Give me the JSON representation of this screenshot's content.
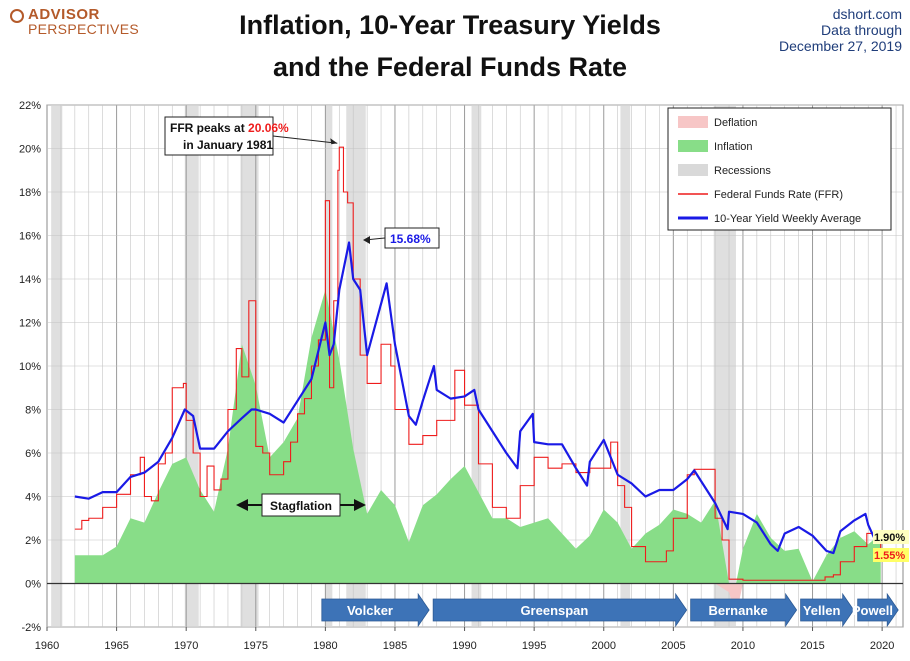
{
  "header": {
    "logo_line1": "ADVISOR",
    "logo_line2": "PERSPECTIVES",
    "title_line1": "Inflation, 10-Year Treasury Yields",
    "title_line2": "and the Federal Funds Rate",
    "source_line1": "dshort.com",
    "source_line2": "Data through",
    "source_line3": "December 27, 2019"
  },
  "colors": {
    "inflation": "#88dd88",
    "deflation": "#f7c6c6",
    "recession": "#d9d9d9",
    "ffr": "#ee1c1c",
    "ten_year": "#1a1ae6",
    "arrow": "#3d73b7"
  },
  "chart_data": {
    "type": "line",
    "xlim": [
      1960,
      2021.5
    ],
    "ylim": [
      -2,
      22
    ],
    "x_ticks": [
      1960,
      1965,
      1970,
      1975,
      1980,
      1985,
      1990,
      1995,
      2000,
      2005,
      2010,
      2015,
      2020
    ],
    "y_ticks": [
      -2,
      0,
      2,
      4,
      6,
      8,
      10,
      12,
      14,
      16,
      18,
      20,
      22
    ],
    "y_tick_labels": [
      "-2%",
      "0%",
      "2%",
      "4%",
      "6%",
      "8%",
      "10%",
      "12%",
      "14%",
      "16%",
      "18%",
      "20%",
      "22%"
    ],
    "grid": true,
    "legend_position": "top-right",
    "legend": [
      "Deflation",
      "Inflation",
      "Recessions",
      "Federal Funds Rate (FFR)",
      "10-Year Yield Weekly Average"
    ],
    "recessions": [
      [
        1960.3,
        1961.1
      ],
      [
        1969.9,
        1970.9
      ],
      [
        1973.9,
        1975.2
      ],
      [
        1980.0,
        1980.5
      ],
      [
        1981.5,
        1982.9
      ],
      [
        1990.5,
        1991.2
      ],
      [
        2001.2,
        2001.9
      ],
      [
        2007.9,
        2009.5
      ]
    ],
    "series": [
      {
        "name": "Inflation",
        "style": "area",
        "x": [
          1962,
          1963,
          1964,
          1965,
          1966,
          1967,
          1968,
          1969,
          1970,
          1971,
          1972,
          1973,
          1974,
          1975,
          1976,
          1977,
          1978,
          1979,
          1980,
          1981,
          1982,
          1983,
          1984,
          1985,
          1986,
          1987,
          1988,
          1989,
          1990,
          1991,
          1992,
          1993,
          1994,
          1995,
          1996,
          1997,
          1998,
          1999,
          2000,
          2001,
          2002,
          2003,
          2004,
          2005,
          2006,
          2007,
          2008,
          2009,
          2009.5,
          2010,
          2011,
          2012,
          2013,
          2014,
          2015,
          2016,
          2017,
          2018,
          2019,
          2019.9
        ],
        "values": [
          1.3,
          1.3,
          1.3,
          1.7,
          3.0,
          2.8,
          4.2,
          5.5,
          5.8,
          4.3,
          3.3,
          6.2,
          11.0,
          9.1,
          5.8,
          6.5,
          7.6,
          11.3,
          13.5,
          10.3,
          6.2,
          3.2,
          4.3,
          3.6,
          1.9,
          3.6,
          4.1,
          4.8,
          5.4,
          4.2,
          3.0,
          3.0,
          2.6,
          2.8,
          3.0,
          2.3,
          1.6,
          2.2,
          3.4,
          2.8,
          1.6,
          2.3,
          2.7,
          3.4,
          3.2,
          2.8,
          3.8,
          -0.4,
          -1.5,
          1.6,
          3.2,
          2.1,
          1.5,
          1.6,
          0.1,
          1.3,
          2.1,
          2.4,
          1.8,
          2.3
        ]
      },
      {
        "name": "Federal Funds Rate (FFR)",
        "style": "line",
        "x": [
          1962,
          1962.5,
          1963,
          1964,
          1965,
          1966,
          1966.7,
          1967,
          1967.5,
          1968,
          1968.5,
          1969,
          1969.8,
          1970,
          1970.5,
          1971,
          1971.5,
          1972,
          1972.5,
          1973,
          1973.6,
          1974,
          1974.5,
          1975,
          1975.5,
          1976,
          1977,
          1977.5,
          1978,
          1978.5,
          1979,
          1979.5,
          1980,
          1980.3,
          1980.6,
          1980.9,
          1981.0,
          1981.3,
          1981.6,
          1982,
          1982.5,
          1983,
          1984,
          1984.7,
          1985,
          1986,
          1987,
          1988,
          1989.3,
          1990,
          1991,
          1992,
          1993,
          1994,
          1995,
          1996,
          1997,
          1998,
          1999,
          2000.5,
          2001,
          2001.5,
          2002,
          2003,
          2003.5,
          2004.5,
          2005,
          2006,
          2006.5,
          2007.5,
          2008,
          2008.5,
          2009,
          2010,
          2012,
          2015.9,
          2016.5,
          2017,
          2018,
          2018.9,
          2019.5,
          2019.9
        ],
        "values": [
          2.5,
          2.9,
          3.0,
          3.5,
          4.1,
          5.0,
          5.8,
          4.0,
          3.8,
          5.5,
          6.0,
          9.0,
          9.2,
          7.5,
          6.0,
          4.0,
          5.4,
          4.3,
          4.8,
          8.0,
          10.8,
          9.5,
          13.0,
          6.3,
          6.0,
          5.0,
          5.6,
          6.5,
          7.8,
          8.5,
          10.0,
          11.2,
          17.6,
          9.0,
          13.0,
          19.0,
          20.06,
          18.0,
          17.5,
          14.0,
          10.5,
          9.2,
          11.0,
          10.0,
          8.0,
          6.4,
          6.8,
          7.5,
          9.8,
          8.2,
          5.5,
          3.5,
          3.0,
          4.5,
          5.8,
          5.3,
          5.5,
          5.1,
          5.3,
          6.5,
          4.5,
          3.5,
          1.7,
          1.0,
          1.0,
          1.5,
          3.0,
          5.0,
          5.25,
          5.25,
          3.0,
          2.0,
          0.2,
          0.15,
          0.15,
          0.3,
          0.4,
          1.0,
          1.7,
          2.3,
          2.4,
          1.55
        ]
      },
      {
        "name": "10-Year Yield Weekly Average",
        "style": "line",
        "x": [
          1962,
          1963,
          1964,
          1965,
          1966,
          1967,
          1968,
          1969,
          1969.9,
          1970.5,
          1971,
          1972,
          1973,
          1974,
          1974.7,
          1975,
          1976,
          1977,
          1978,
          1979,
          1980,
          1980.3,
          1980.6,
          1981,
          1981.7,
          1982,
          1982.5,
          1983,
          1984.4,
          1985,
          1986,
          1986.5,
          1987,
          1987.8,
          1988,
          1989,
          1990,
          1990.7,
          1991,
          1992,
          1993,
          1993.8,
          1994,
          1994.9,
          1995,
          1996,
          1997,
          1998,
          1998.8,
          1999,
          2000,
          2001,
          2002,
          2003,
          2004,
          2005,
          2006,
          2006.5,
          2007,
          2008,
          2008.9,
          2009,
          2010,
          2011,
          2012,
          2012.5,
          2013,
          2014,
          2015,
          2016,
          2016.5,
          2017,
          2018,
          2018.8,
          2019,
          2019.5,
          2019.9
        ],
        "values": [
          4.0,
          3.9,
          4.2,
          4.2,
          4.9,
          5.1,
          5.6,
          6.7,
          8.0,
          7.7,
          6.2,
          6.2,
          7.0,
          7.6,
          8.0,
          8.0,
          7.8,
          7.4,
          8.4,
          9.4,
          12.0,
          10.5,
          11.0,
          13.5,
          15.68,
          14.0,
          13.5,
          10.5,
          13.8,
          11.0,
          7.7,
          7.3,
          8.4,
          10.0,
          8.9,
          8.5,
          8.6,
          8.9,
          8.0,
          7.0,
          6.0,
          5.3,
          7.0,
          7.8,
          6.5,
          6.4,
          6.4,
          5.3,
          4.5,
          5.6,
          6.6,
          5.0,
          4.6,
          4.0,
          4.3,
          4.3,
          4.8,
          5.2,
          4.7,
          3.7,
          2.5,
          3.3,
          3.2,
          2.8,
          1.8,
          1.5,
          2.3,
          2.6,
          2.2,
          1.5,
          1.4,
          2.4,
          2.9,
          3.2,
          2.7,
          2.0,
          1.9
        ]
      }
    ],
    "annotations": {
      "ffr_peak_prefix": "FFR peaks at ",
      "ffr_peak_value": "20.06%",
      "ffr_peak_suffix": "in January 1981",
      "ten_year_peak": "15.68%",
      "stagflation": "Stagflation",
      "ten_year_last": "1.90%",
      "ffr_last": "1.55%"
    },
    "eras": [
      {
        "label": "Volcker",
        "start": 1979.6,
        "end": 1987.6
      },
      {
        "label": "Greenspan",
        "start": 1987.6,
        "end": 2006.1
      },
      {
        "label": "Bernanke",
        "start": 2006.1,
        "end": 2014.0
      },
      {
        "label": "Yellen",
        "start": 2014.0,
        "end": 2018.1
      },
      {
        "label": "Powell",
        "start": 2018.1,
        "end": 2021.3
      }
    ]
  }
}
